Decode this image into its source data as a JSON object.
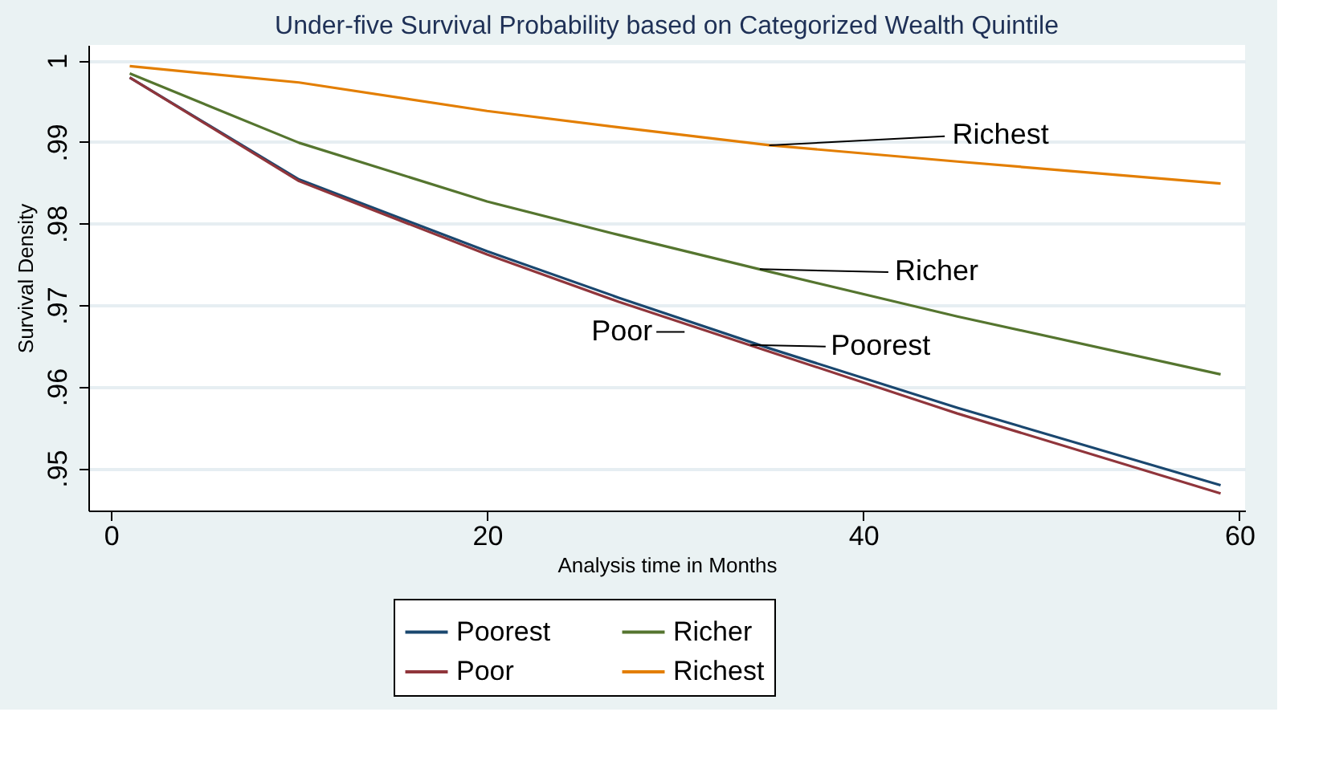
{
  "chart_data": {
    "type": "line",
    "title": "Under-five Survival Probability based on Categorized Wealth Quintile",
    "xlabel": "Analysis time in Months",
    "ylabel": "Survival Density",
    "x": [
      1,
      10,
      20,
      27,
      35,
      45,
      59
    ],
    "series": [
      {
        "name": "Poorest",
        "color": "#1a476f",
        "values": [
          0.9979,
          0.9854,
          0.9766,
          0.9709,
          0.9647,
          0.9574,
          0.9479
        ]
      },
      {
        "name": "Poor",
        "color": "#90353b",
        "values": [
          0.9979,
          0.9852,
          0.9762,
          0.9704,
          0.9643,
          0.9567,
          0.9469
        ]
      },
      {
        "name": "Richer",
        "color": "#55752f",
        "values": [
          0.9984,
          0.9899,
          0.9827,
          0.9786,
          0.9741,
          0.9686,
          0.9615
        ]
      },
      {
        "name": "Richest",
        "color": "#e37e00",
        "values": [
          0.9993,
          0.9973,
          0.9938,
          0.9918,
          0.9896,
          0.9876,
          0.9849
        ]
      }
    ],
    "annotations": [
      {
        "text": "Richest",
        "x": 35,
        "y": 0.9896
      },
      {
        "text": "Richer",
        "x": 34.5,
        "y": 0.9744
      },
      {
        "text": "Poorest",
        "x": 34,
        "y": 0.9651
      },
      {
        "text": "Poor",
        "x": 30.5,
        "y": 0.9667
      }
    ],
    "xlim": [
      -1.2,
      60.3
    ],
    "xticks": [
      0,
      20,
      40,
      60
    ],
    "ylim": [
      0.9448,
      1.0019
    ],
    "yticks": [
      {
        "value": 0.95,
        "label": ".95"
      },
      {
        "value": 0.96,
        "label": ".96"
      },
      {
        "value": 0.97,
        "label": ".97"
      },
      {
        "value": 0.98,
        "label": ".98"
      },
      {
        "value": 0.99,
        "label": ".99"
      },
      1
    ],
    "grid": "y",
    "legend": "bottom",
    "line_style": "solid",
    "marker": "none"
  }
}
